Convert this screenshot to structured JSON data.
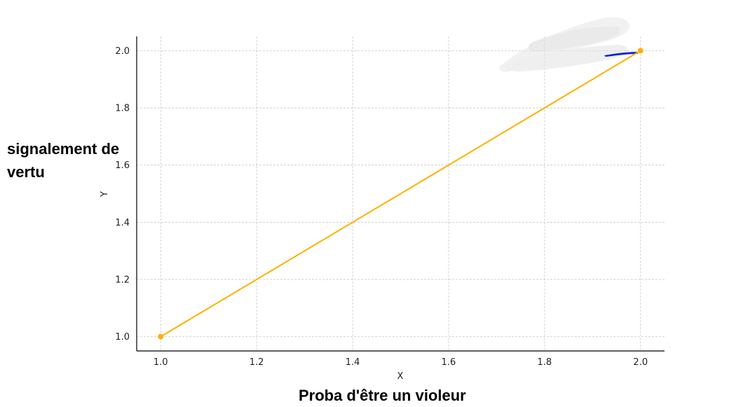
{
  "chart_data": {
    "type": "line",
    "title": "",
    "xlabel": "X",
    "ylabel": "Y",
    "xlim": [
      0.95,
      2.05
    ],
    "ylim": [
      0.95,
      2.05
    ],
    "x_ticks": [
      "1.0",
      "1.2",
      "1.4",
      "1.6",
      "1.8",
      "2.0"
    ],
    "y_ticks": [
      "1.0",
      "1.2",
      "1.4",
      "1.6",
      "1.8",
      "2.0"
    ],
    "grid": true,
    "grid_style": "dashed",
    "series": [
      {
        "x": [
          1.0,
          2.0
        ],
        "y": [
          1.0,
          2.0
        ],
        "color": "#ffb000",
        "markers": true
      }
    ]
  },
  "annotations": {
    "y_annotation": "signalement de vertu",
    "x_annotation": "Proba d'être un violeur"
  }
}
